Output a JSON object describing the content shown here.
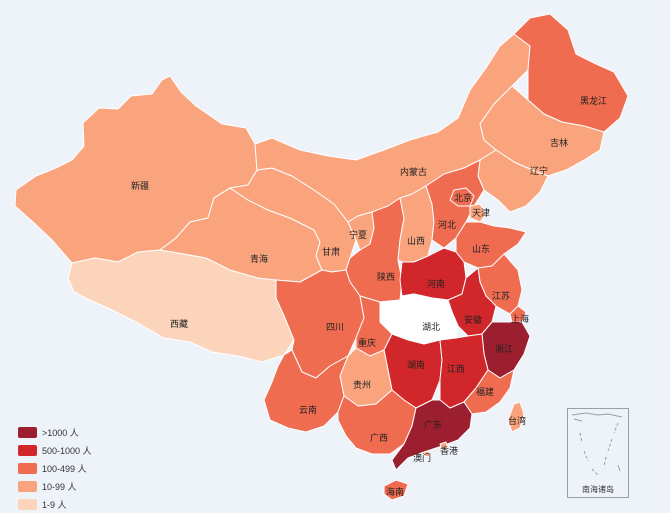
{
  "colors": {
    "tier1": "#9b1f2e",
    "tier2": "#d1262a",
    "tier3": "#ef6c50",
    "tier4": "#f9a47d",
    "tier5": "#fcd4bb",
    "zero": "#ffffff",
    "border": "#ffffff",
    "background": "#eef2f9"
  },
  "legend": [
    {
      "label": ">1000 人",
      "tier": "tier1"
    },
    {
      "label": "500-1000 人",
      "tier": "tier2"
    },
    {
      "label": "100-499 人",
      "tier": "tier3"
    },
    {
      "label": "10-99 人",
      "tier": "tier4"
    },
    {
      "label": "1-9 人",
      "tier": "tier5"
    }
  ],
  "provinces": [
    {
      "id": "xinjiang",
      "name": "新疆",
      "tier": "tier4"
    },
    {
      "id": "xizang",
      "name": "西藏",
      "tier": "tier5"
    },
    {
      "id": "qinghai",
      "name": "青海",
      "tier": "tier4"
    },
    {
      "id": "gansu",
      "name": "甘肃",
      "tier": "tier4"
    },
    {
      "id": "neimenggu",
      "name": "内蒙古",
      "tier": "tier4"
    },
    {
      "id": "heilongjiang",
      "name": "黑龙江",
      "tier": "tier3"
    },
    {
      "id": "jilin",
      "name": "吉林",
      "tier": "tier4"
    },
    {
      "id": "liaoning",
      "name": "辽宁",
      "tier": "tier4"
    },
    {
      "id": "ningxia",
      "name": "宁夏",
      "tier": "tier4"
    },
    {
      "id": "shaanxi",
      "name": "陕西",
      "tier": "tier3"
    },
    {
      "id": "shanxi",
      "name": "山西",
      "tier": "tier4"
    },
    {
      "id": "hebei",
      "name": "河北",
      "tier": "tier3"
    },
    {
      "id": "beijing",
      "name": "北京",
      "tier": "tier3"
    },
    {
      "id": "tianjin",
      "name": "天津",
      "tier": "tier4"
    },
    {
      "id": "shandong",
      "name": "山东",
      "tier": "tier3"
    },
    {
      "id": "henan",
      "name": "河南",
      "tier": "tier2"
    },
    {
      "id": "jiangsu",
      "name": "江苏",
      "tier": "tier3"
    },
    {
      "id": "anhui",
      "name": "安徽",
      "tier": "tier2"
    },
    {
      "id": "shanghai",
      "name": "上海",
      "tier": "tier3"
    },
    {
      "id": "hubei",
      "name": "湖北",
      "tier": "zero"
    },
    {
      "id": "sichuan",
      "name": "四川",
      "tier": "tier3"
    },
    {
      "id": "chongqing",
      "name": "重庆",
      "tier": "tier3"
    },
    {
      "id": "zhejiang",
      "name": "浙江",
      "tier": "tier1"
    },
    {
      "id": "hunan",
      "name": "湖南",
      "tier": "tier2"
    },
    {
      "id": "jiangxi",
      "name": "江西",
      "tier": "tier2"
    },
    {
      "id": "guizhou",
      "name": "贵州",
      "tier": "tier4"
    },
    {
      "id": "yunnan",
      "name": "云南",
      "tier": "tier3"
    },
    {
      "id": "fujian",
      "name": "福建",
      "tier": "tier3"
    },
    {
      "id": "guangxi",
      "name": "广西",
      "tier": "tier3"
    },
    {
      "id": "guangdong",
      "name": "广东",
      "tier": "tier1"
    },
    {
      "id": "taiwan",
      "name": "台湾",
      "tier": "tier4"
    },
    {
      "id": "hainan",
      "name": "海南",
      "tier": "tier3"
    },
    {
      "id": "xianggang",
      "name": "香港",
      "tier": "tier4"
    },
    {
      "id": "aomen",
      "name": "澳门",
      "tier": "tier4"
    }
  ],
  "inset": {
    "label": "南海诸岛"
  }
}
